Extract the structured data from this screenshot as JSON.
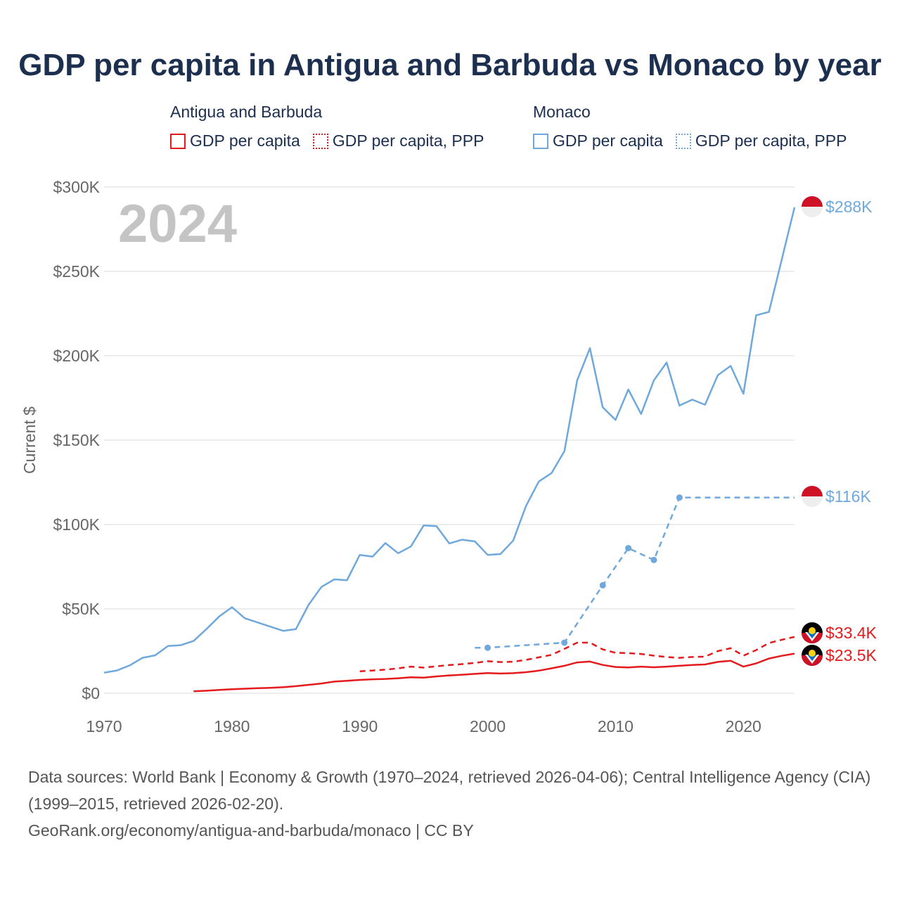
{
  "title": "GDP per capita in Antigua and Barbuda vs Monaco by year",
  "legend": {
    "groups": [
      {
        "name": "Antigua and Barbuda",
        "color": "#e41a1c",
        "items": [
          "GDP per capita",
          "GDP per capita, PPP"
        ]
      },
      {
        "name": "Monaco",
        "color": "#6fa8dc",
        "items": [
          "GDP per capita",
          "GDP per capita, PPP"
        ]
      }
    ]
  },
  "year_label": "2024",
  "colors": {
    "antigua": "#e41a1c",
    "monaco": "#6fa8dc",
    "grid": "#e6e6e6",
    "axis_text": "#666666",
    "year": "#c4c4c4"
  },
  "chart_data": {
    "type": "line",
    "title": "GDP per capita in Antigua and Barbuda vs Monaco by year",
    "xlabel": "",
    "ylabel": "Current $",
    "xlim": [
      1970,
      2024
    ],
    "ylim": [
      0,
      300000
    ],
    "x_ticks": [
      1970,
      1980,
      1990,
      2000,
      2010,
      2020
    ],
    "x_tick_labels": [
      "1970",
      "1980",
      "1990",
      "2000",
      "2010",
      "2020"
    ],
    "y_ticks": [
      0,
      50000,
      100000,
      150000,
      200000,
      250000,
      300000
    ],
    "y_tick_labels": [
      "$0",
      "$50K",
      "$100K",
      "$150K",
      "$200K",
      "$250K",
      "$300K"
    ],
    "grid": true,
    "series": [
      {
        "name": "Monaco GDP per capita",
        "country": "monaco",
        "style": "solid",
        "markers": false,
        "end_label": "$288K",
        "x": [
          1970,
          1971,
          1972,
          1973,
          1974,
          1975,
          1976,
          1977,
          1978,
          1979,
          1980,
          1981,
          1982,
          1983,
          1984,
          1985,
          1986,
          1987,
          1988,
          1989,
          1990,
          1991,
          1992,
          1993,
          1994,
          1995,
          1996,
          1997,
          1998,
          1999,
          2000,
          2001,
          2002,
          2003,
          2004,
          2005,
          2006,
          2007,
          2008,
          2009,
          2010,
          2011,
          2012,
          2013,
          2014,
          2015,
          2016,
          2017,
          2018,
          2019,
          2020,
          2021,
          2022,
          2023,
          2024
        ],
        "values": [
          12200,
          13500,
          16500,
          21000,
          22500,
          28000,
          28500,
          31000,
          38000,
          45500,
          51000,
          44500,
          42000,
          39500,
          37000,
          38000,
          52500,
          63000,
          67500,
          67000,
          82000,
          81000,
          89000,
          83000,
          87000,
          99500,
          99000,
          88800,
          91000,
          90000,
          82000,
          82500,
          90500,
          111000,
          125500,
          130500,
          143500,
          185500,
          204500,
          169500,
          162000,
          180000,
          165500,
          185500,
          196000,
          170500,
          174000,
          171000,
          188500,
          194000,
          177500,
          224000,
          226000,
          257000,
          288000
        ]
      },
      {
        "name": "Monaco GDP per capita, PPP",
        "country": "monaco",
        "style": "dashed",
        "markers": true,
        "end_label": "$116K",
        "x": [
          1999,
          2000,
          2006,
          2009,
          2011,
          2013,
          2015,
          2024
        ],
        "values": [
          27000,
          27000,
          30000,
          64000,
          86000,
          79000,
          116000,
          116000
        ]
      },
      {
        "name": "Antigua and Barbuda GDP per capita, PPP",
        "country": "antigua",
        "style": "dashed",
        "markers": false,
        "end_label": "$33.4K",
        "x": [
          1990,
          1991,
          1992,
          1993,
          1994,
          1995,
          1996,
          1997,
          1998,
          1999,
          2000,
          2001,
          2002,
          2003,
          2004,
          2005,
          2006,
          2007,
          2008,
          2009,
          2010,
          2011,
          2012,
          2013,
          2014,
          2015,
          2016,
          2017,
          2018,
          2019,
          2020,
          2021,
          2022,
          2023,
          2024
        ],
        "values": [
          13000,
          13500,
          14000,
          14800,
          15800,
          15200,
          16000,
          16700,
          17300,
          18000,
          19000,
          18500,
          18700,
          19800,
          21300,
          22800,
          26300,
          30000,
          30000,
          26000,
          24000,
          23800,
          23300,
          22300,
          21500,
          21000,
          21500,
          21700,
          25000,
          26700,
          22300,
          25600,
          29800,
          31700,
          33400
        ]
      },
      {
        "name": "Antigua and Barbuda GDP per capita",
        "country": "antigua",
        "style": "solid",
        "markers": false,
        "end_label": "$23.5K",
        "x": [
          1977,
          1978,
          1979,
          1980,
          1981,
          1982,
          1983,
          1984,
          1985,
          1986,
          1987,
          1988,
          1989,
          1990,
          1991,
          1992,
          1993,
          1994,
          1995,
          1996,
          1997,
          1998,
          1999,
          2000,
          2001,
          2002,
          2003,
          2004,
          2005,
          2006,
          2007,
          2008,
          2009,
          2010,
          2011,
          2012,
          2013,
          2014,
          2015,
          2016,
          2017,
          2018,
          2019,
          2020,
          2021,
          2022,
          2023,
          2024
        ],
        "values": [
          1200,
          1500,
          2000,
          2400,
          2700,
          3000,
          3200,
          3600,
          4200,
          5000,
          5800,
          6900,
          7400,
          7900,
          8300,
          8500,
          8900,
          9500,
          9300,
          10000,
          10600,
          11000,
          11500,
          12000,
          11700,
          11900,
          12500,
          13400,
          14800,
          16300,
          18300,
          18800,
          16800,
          15600,
          15300,
          15800,
          15400,
          15800,
          16300,
          16800,
          17100,
          18600,
          19300,
          15800,
          17700,
          20600,
          22200,
          23500
        ]
      }
    ]
  },
  "footer": {
    "sources": "Data sources: World Bank | Economy & Growth (1970–2024, retrieved 2026-04-06); Central Intelligence Agency (CIA) (1999–2015, retrieved 2026-02-20).",
    "credit": "GeoRank.org/economy/antigua-and-barbuda/monaco | CC BY"
  }
}
